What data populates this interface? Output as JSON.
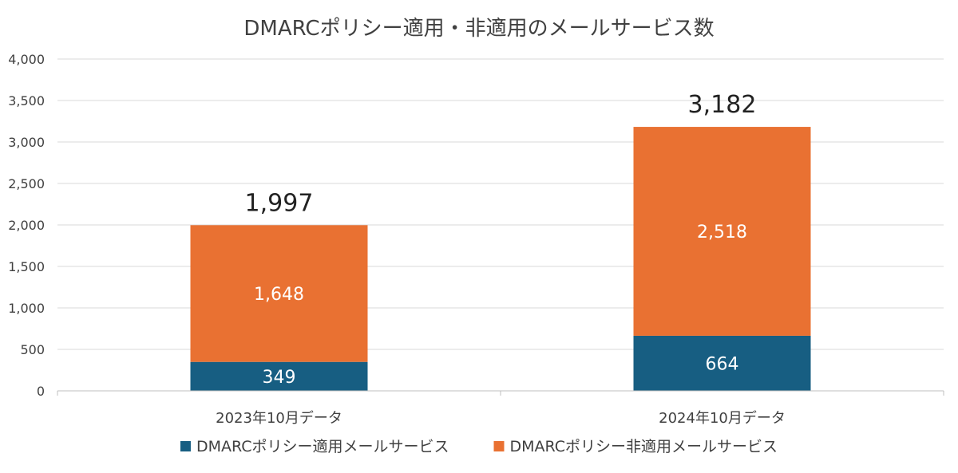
{
  "chart_data": {
    "type": "bar",
    "stacked": true,
    "title": "DMARCポリシー適用・非適用のメールサービス数",
    "categories": [
      "2023年10月データ",
      "2024年10月データ"
    ],
    "series": [
      {
        "name": "DMARCポリシー適用メールサービス",
        "values": [
          349,
          664
        ],
        "color": "#175E82"
      },
      {
        "name": "DMARCポリシー非適用メールサービス",
        "values": [
          1648,
          2518
        ],
        "color": "#E97132"
      }
    ],
    "totals": [
      1997,
      3182
    ],
    "ylim": [
      0,
      4000
    ],
    "yticks": [
      0,
      500,
      1000,
      1500,
      2000,
      2500,
      3000,
      3500,
      4000
    ],
    "grid": true,
    "legend": "bottom"
  }
}
